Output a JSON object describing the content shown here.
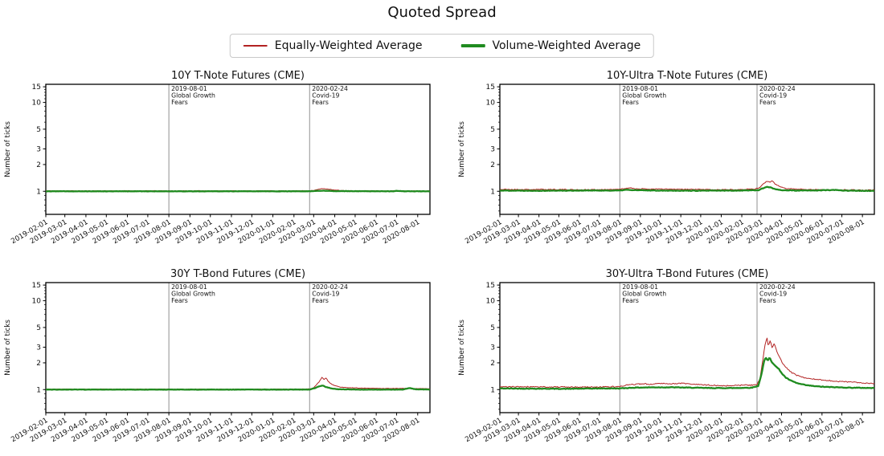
{
  "figure": {
    "title": "Quoted Spread",
    "background": "#ffffff"
  },
  "legend": {
    "entries": [
      {
        "label": "Equally-Weighted Average",
        "color": "#b22222",
        "line_thickness": 2
      },
      {
        "label": "Volume-Weighted Average",
        "color": "#1f8b1f",
        "line_thickness": 3.5
      }
    ]
  },
  "axes": {
    "ylabel": "Number of ticks",
    "yscale": "log",
    "ylim": [
      0.55,
      16
    ],
    "yticks_major": [
      1,
      2,
      3,
      5,
      10,
      15
    ],
    "yticks_minor": [
      0.6,
      0.7,
      0.8,
      0.9,
      4,
      6,
      7,
      8,
      9,
      11,
      12,
      13,
      14
    ],
    "x_total_days": 565,
    "xtick_days": [
      0,
      28,
      59,
      89,
      120,
      150,
      181,
      212,
      242,
      273,
      303,
      334,
      365,
      394,
      425,
      455,
      486,
      516,
      547
    ],
    "xtick_labels": [
      "2019-02-01",
      "2019-03-01",
      "2019-04-01",
      "2019-05-01",
      "2019-06-01",
      "2019-07-01",
      "2019-08-01",
      "2019-09-01",
      "2019-10-01",
      "2019-11-01",
      "2019-12-01",
      "2020-01-01",
      "2020-02-01",
      "2020-03-01",
      "2020-04-01",
      "2020-05-01",
      "2020-06-01",
      "2020-07-01",
      "2020-08-01"
    ],
    "event_line_color": "#909090",
    "events": [
      {
        "day": 181,
        "lines": [
          "2019-08-01",
          "Global Growth",
          "Fears"
        ]
      },
      {
        "day": 388,
        "lines": [
          "2020-02-24",
          "Covid-19",
          "Fears"
        ]
      }
    ]
  },
  "chart_data": [
    {
      "type": "line",
      "title": "10Y T-Note Futures (CME)",
      "ylabel": "Number of ticks",
      "series": [
        {
          "name": "Equally-Weighted Average",
          "color": "#b22222",
          "width": 1.0,
          "noise": 0.007,
          "seed": 11,
          "keypoints": [
            [
              0,
              1.012
            ],
            [
              60,
              1.01
            ],
            [
              120,
              1.012
            ],
            [
              180,
              1.01
            ],
            [
              240,
              1.012
            ],
            [
              300,
              1.01
            ],
            [
              360,
              1.012
            ],
            [
              388,
              1.015
            ],
            [
              396,
              1.03
            ],
            [
              403,
              1.06
            ],
            [
              410,
              1.07
            ],
            [
              417,
              1.05
            ],
            [
              425,
              1.03
            ],
            [
              435,
              1.02
            ],
            [
              450,
              1.012
            ],
            [
              500,
              1.01
            ],
            [
              565,
              1.008
            ]
          ]
        },
        {
          "name": "Volume-Weighted Average",
          "color": "#1f8b1f",
          "width": 2.3,
          "noise": 0.004,
          "seed": 12,
          "keypoints": [
            [
              0,
              1.0
            ],
            [
              388,
              1.0
            ],
            [
              400,
              1.01
            ],
            [
              412,
              1.015
            ],
            [
              425,
              1.005
            ],
            [
              500,
              1.0
            ],
            [
              510,
              1.0
            ],
            [
              518,
              1.012
            ],
            [
              526,
              1.0
            ],
            [
              565,
              1.0
            ]
          ]
        }
      ]
    },
    {
      "type": "line",
      "title": "10Y-Ultra T-Note Futures (CME)",
      "ylabel": "Number of ticks",
      "series": [
        {
          "name": "Equally-Weighted Average",
          "color": "#b22222",
          "width": 1.0,
          "noise": 0.012,
          "seed": 21,
          "keypoints": [
            [
              0,
              1.05
            ],
            [
              40,
              1.045
            ],
            [
              80,
              1.05
            ],
            [
              120,
              1.04
            ],
            [
              160,
              1.045
            ],
            [
              181,
              1.05
            ],
            [
              188,
              1.08
            ],
            [
              196,
              1.09
            ],
            [
              205,
              1.07
            ],
            [
              220,
              1.06
            ],
            [
              240,
              1.06
            ],
            [
              270,
              1.05
            ],
            [
              300,
              1.05
            ],
            [
              330,
              1.04
            ],
            [
              360,
              1.05
            ],
            [
              385,
              1.06
            ],
            [
              392,
              1.1
            ],
            [
              398,
              1.22
            ],
            [
              403,
              1.3
            ],
            [
              407,
              1.26
            ],
            [
              411,
              1.3
            ],
            [
              416,
              1.2
            ],
            [
              423,
              1.12
            ],
            [
              432,
              1.08
            ],
            [
              445,
              1.06
            ],
            [
              465,
              1.05
            ],
            [
              490,
              1.04
            ],
            [
              520,
              1.04
            ],
            [
              545,
              1.03
            ],
            [
              565,
              1.03
            ]
          ]
        },
        {
          "name": "Volume-Weighted Average",
          "color": "#1f8b1f",
          "width": 2.3,
          "noise": 0.007,
          "seed": 22,
          "keypoints": [
            [
              0,
              1.02
            ],
            [
              60,
              1.015
            ],
            [
              120,
              1.02
            ],
            [
              181,
              1.02
            ],
            [
              190,
              1.04
            ],
            [
              200,
              1.03
            ],
            [
              240,
              1.02
            ],
            [
              300,
              1.015
            ],
            [
              360,
              1.02
            ],
            [
              390,
              1.03
            ],
            [
              398,
              1.09
            ],
            [
              404,
              1.12
            ],
            [
              409,
              1.1
            ],
            [
              415,
              1.06
            ],
            [
              425,
              1.03
            ],
            [
              445,
              1.02
            ],
            [
              470,
              1.02
            ],
            [
              495,
              1.03
            ],
            [
              505,
              1.035
            ],
            [
              515,
              1.02
            ],
            [
              540,
              1.015
            ],
            [
              565,
              1.01
            ]
          ]
        }
      ]
    },
    {
      "type": "line",
      "title": "30Y T-Bond Futures (CME)",
      "ylabel": "Number of ticks",
      "series": [
        {
          "name": "Equally-Weighted Average",
          "color": "#b22222",
          "width": 1.0,
          "noise": 0.006,
          "seed": 31,
          "keypoints": [
            [
              0,
              1.012
            ],
            [
              90,
              1.01
            ],
            [
              181,
              1.012
            ],
            [
              270,
              1.01
            ],
            [
              360,
              1.012
            ],
            [
              388,
              1.015
            ],
            [
              394,
              1.05
            ],
            [
              399,
              1.15
            ],
            [
              403,
              1.25
            ],
            [
              406,
              1.38
            ],
            [
              409,
              1.3
            ],
            [
              412,
              1.35
            ],
            [
              416,
              1.22
            ],
            [
              421,
              1.14
            ],
            [
              428,
              1.09
            ],
            [
              436,
              1.06
            ],
            [
              448,
              1.05
            ],
            [
              465,
              1.04
            ],
            [
              490,
              1.03
            ],
            [
              520,
              1.03
            ],
            [
              565,
              1.025
            ]
          ]
        },
        {
          "name": "Volume-Weighted Average",
          "color": "#1f8b1f",
          "width": 2.3,
          "noise": 0.004,
          "seed": 32,
          "keypoints": [
            [
              0,
              1.0
            ],
            [
              180,
              1.0
            ],
            [
              388,
              1.0
            ],
            [
              396,
              1.04
            ],
            [
              402,
              1.09
            ],
            [
              407,
              1.11
            ],
            [
              412,
              1.07
            ],
            [
              420,
              1.03
            ],
            [
              430,
              1.01
            ],
            [
              460,
              1.0
            ],
            [
              525,
              1.0
            ],
            [
              535,
              1.04
            ],
            [
              543,
              1.01
            ],
            [
              565,
              1.0
            ]
          ]
        }
      ]
    },
    {
      "type": "line",
      "title": "30Y-Ultra T-Bond Futures (CME)",
      "ylabel": "Number of ticks",
      "series": [
        {
          "name": "Equally-Weighted Average",
          "color": "#b22222",
          "width": 1.0,
          "noise": 0.014,
          "seed": 41,
          "keypoints": [
            [
              0,
              1.07
            ],
            [
              30,
              1.08
            ],
            [
              60,
              1.075
            ],
            [
              90,
              1.07
            ],
            [
              120,
              1.065
            ],
            [
              150,
              1.07
            ],
            [
              181,
              1.08
            ],
            [
              190,
              1.12
            ],
            [
              200,
              1.14
            ],
            [
              215,
              1.16
            ],
            [
              230,
              1.15
            ],
            [
              245,
              1.18
            ],
            [
              260,
              1.16
            ],
            [
              275,
              1.18
            ],
            [
              290,
              1.15
            ],
            [
              305,
              1.13
            ],
            [
              320,
              1.12
            ],
            [
              335,
              1.1
            ],
            [
              350,
              1.11
            ],
            [
              365,
              1.12
            ],
            [
              378,
              1.12
            ],
            [
              388,
              1.14
            ],
            [
              393,
              1.35
            ],
            [
              397,
              2.2
            ],
            [
              400,
              3.2
            ],
            [
              403,
              3.85
            ],
            [
              405,
              3.1
            ],
            [
              408,
              3.55
            ],
            [
              411,
              2.9
            ],
            [
              414,
              3.35
            ],
            [
              418,
              2.7
            ],
            [
              422,
              2.3
            ],
            [
              427,
              1.95
            ],
            [
              433,
              1.75
            ],
            [
              440,
              1.55
            ],
            [
              448,
              1.45
            ],
            [
              456,
              1.38
            ],
            [
              466,
              1.33
            ],
            [
              478,
              1.3
            ],
            [
              492,
              1.27
            ],
            [
              508,
              1.24
            ],
            [
              524,
              1.22
            ],
            [
              540,
              1.2
            ],
            [
              555,
              1.18
            ],
            [
              565,
              1.17
            ]
          ]
        },
        {
          "name": "Volume-Weighted Average",
          "color": "#1f8b1f",
          "width": 2.3,
          "noise": 0.008,
          "seed": 42,
          "keypoints": [
            [
              0,
              1.03
            ],
            [
              50,
              1.025
            ],
            [
              100,
              1.02
            ],
            [
              150,
              1.03
            ],
            [
              181,
              1.03
            ],
            [
              200,
              1.05
            ],
            [
              230,
              1.06
            ],
            [
              260,
              1.06
            ],
            [
              290,
              1.05
            ],
            [
              320,
              1.04
            ],
            [
              350,
              1.04
            ],
            [
              380,
              1.05
            ],
            [
              390,
              1.1
            ],
            [
              395,
              1.5
            ],
            [
              398,
              2.0
            ],
            [
              401,
              2.3
            ],
            [
              404,
              2.1
            ],
            [
              407,
              2.3
            ],
            [
              410,
              2.05
            ],
            [
              413,
              1.95
            ],
            [
              417,
              1.8
            ],
            [
              421,
              1.7
            ],
            [
              426,
              1.5
            ],
            [
              432,
              1.35
            ],
            [
              440,
              1.25
            ],
            [
              450,
              1.17
            ],
            [
              462,
              1.12
            ],
            [
              476,
              1.09
            ],
            [
              492,
              1.07
            ],
            [
              510,
              1.06
            ],
            [
              530,
              1.05
            ],
            [
              550,
              1.045
            ],
            [
              565,
              1.04
            ]
          ]
        }
      ]
    }
  ]
}
